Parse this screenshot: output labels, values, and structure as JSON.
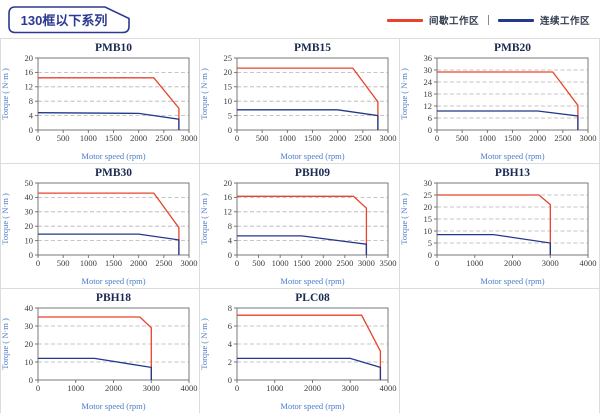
{
  "header": {
    "title": "130框以下系列",
    "legend": [
      {
        "key": "intermittent",
        "label": "间歇工作区",
        "color": "#e8432c"
      },
      {
        "key": "continuous",
        "label": "连续工作区",
        "color": "#21388b"
      }
    ]
  },
  "chart_data": [
    {
      "type": "line",
      "title": "PMB10",
      "xlabel": "Motor speed (rpm)",
      "ylabel": "Torque ( N·m )",
      "xlim": [
        0,
        3000
      ],
      "xtick_step": 500,
      "ylim": [
        0,
        20
      ],
      "ytick_step": 4,
      "grid": true,
      "legend_position": "none",
      "series": [
        {
          "name": "间歇工作区",
          "key": "intermittent",
          "color": "#e8432c",
          "points": [
            [
              0,
              14.5
            ],
            [
              2300,
              14.5
            ],
            [
              2800,
              6
            ],
            [
              2800,
              0
            ]
          ]
        },
        {
          "name": "连续工作区",
          "key": "continuous",
          "color": "#21388b",
          "points": [
            [
              0,
              4.8
            ],
            [
              2000,
              4.6
            ],
            [
              2800,
              3
            ],
            [
              2800,
              0
            ]
          ]
        }
      ]
    },
    {
      "type": "line",
      "title": "PMB15",
      "xlabel": "Motor speed (rpm)",
      "ylabel": "Torque ( N·m )",
      "xlim": [
        0,
        3000
      ],
      "xtick_step": 500,
      "ylim": [
        0,
        25
      ],
      "ytick_step": 5,
      "grid": true,
      "legend_position": "none",
      "series": [
        {
          "name": "间歇工作区",
          "key": "intermittent",
          "color": "#e8432c",
          "points": [
            [
              0,
              21.5
            ],
            [
              2300,
              21.5
            ],
            [
              2800,
              9.8
            ],
            [
              2800,
              0
            ]
          ]
        },
        {
          "name": "连续工作区",
          "key": "continuous",
          "color": "#21388b",
          "points": [
            [
              0,
              7
            ],
            [
              2000,
              7
            ],
            [
              2800,
              5
            ],
            [
              2800,
              0
            ]
          ]
        }
      ]
    },
    {
      "type": "line",
      "title": "PMB20",
      "xlabel": "Motor speed (rpm)",
      "ylabel": "Torque ( N·m )",
      "xlim": [
        0,
        3000
      ],
      "xtick_step": 500,
      "ylim": [
        0,
        36
      ],
      "ytick_step": 6,
      "grid": true,
      "legend_position": "none",
      "series": [
        {
          "name": "间歇工作区",
          "key": "intermittent",
          "color": "#e8432c",
          "points": [
            [
              0,
              29
            ],
            [
              2300,
              29
            ],
            [
              2800,
              12.3
            ],
            [
              2800,
              0
            ]
          ]
        },
        {
          "name": "连续工作区",
          "key": "continuous",
          "color": "#21388b",
          "points": [
            [
              0,
              9.5
            ],
            [
              2000,
              9.5
            ],
            [
              2800,
              7
            ],
            [
              2800,
              0
            ]
          ]
        }
      ]
    },
    {
      "type": "line",
      "title": "PMB30",
      "xlabel": "Motor speed (rpm)",
      "ylabel": "Torque ( N·m )",
      "xlim": [
        0,
        3000
      ],
      "xtick_step": 500,
      "ylim": [
        0,
        50
      ],
      "ytick_step": 10,
      "grid": true,
      "legend_position": "none",
      "series": [
        {
          "name": "间歇工作区",
          "key": "intermittent",
          "color": "#e8432c",
          "points": [
            [
              0,
              43
            ],
            [
              2300,
              43
            ],
            [
              2800,
              19
            ],
            [
              2800,
              0
            ]
          ]
        },
        {
          "name": "连续工作区",
          "key": "continuous",
          "color": "#21388b",
          "points": [
            [
              0,
              14.5
            ],
            [
              2000,
              14.5
            ],
            [
              2800,
              10.5
            ],
            [
              2800,
              0
            ]
          ]
        }
      ]
    },
    {
      "type": "line",
      "title": "PBH09",
      "xlabel": "Motor speed (rpm)",
      "ylabel": "Torque ( N·m )",
      "xlim": [
        0,
        3500
      ],
      "xtick_step": 500,
      "ylim": [
        0,
        20
      ],
      "ytick_step": 4,
      "grid": true,
      "legend_position": "none",
      "series": [
        {
          "name": "间歇工作区",
          "key": "intermittent",
          "color": "#e8432c",
          "points": [
            [
              0,
              16.3
            ],
            [
              2700,
              16.3
            ],
            [
              3000,
              13
            ],
            [
              3000,
              0
            ]
          ]
        },
        {
          "name": "连续工作区",
          "key": "continuous",
          "color": "#21388b",
          "points": [
            [
              0,
              5.3
            ],
            [
              1500,
              5.3
            ],
            [
              3000,
              3
            ],
            [
              3000,
              0
            ]
          ]
        }
      ]
    },
    {
      "type": "line",
      "title": "PBH13",
      "xlabel": "Motor speed (rpm)",
      "ylabel": "Torque ( N·m )",
      "xlim": [
        0,
        4000
      ],
      "xtick_step": 1000,
      "ylim": [
        0,
        30
      ],
      "ytick_step": 5,
      "grid": true,
      "legend_position": "none",
      "series": [
        {
          "name": "间歇工作区",
          "key": "intermittent",
          "color": "#e8432c",
          "points": [
            [
              0,
              25
            ],
            [
              2700,
              25
            ],
            [
              3000,
              21
            ],
            [
              3000,
              0
            ]
          ]
        },
        {
          "name": "连续工作区",
          "key": "continuous",
          "color": "#21388b",
          "points": [
            [
              0,
              8.5
            ],
            [
              1500,
              8.5
            ],
            [
              3000,
              5
            ],
            [
              3000,
              0
            ]
          ]
        }
      ]
    },
    {
      "type": "line",
      "title": "PBH18",
      "xlabel": "Motor speed (rpm)",
      "ylabel": "Torque ( N·m )",
      "xlim": [
        0,
        4000
      ],
      "xtick_step": 1000,
      "ylim": [
        0,
        40
      ],
      "ytick_step": 10,
      "grid": true,
      "legend_position": "none",
      "series": [
        {
          "name": "间歇工作区",
          "key": "intermittent",
          "color": "#e8432c",
          "points": [
            [
              0,
              35
            ],
            [
              2700,
              35
            ],
            [
              3000,
              29
            ],
            [
              3000,
              0
            ]
          ]
        },
        {
          "name": "连续工作区",
          "key": "continuous",
          "color": "#21388b",
          "points": [
            [
              0,
              12
            ],
            [
              1500,
              12
            ],
            [
              3000,
              7
            ],
            [
              3000,
              0
            ]
          ]
        }
      ]
    },
    {
      "type": "line",
      "title": "PLC08",
      "xlabel": "Motor speed (rpm)",
      "ylabel": "Torque ( N·m )",
      "xlim": [
        0,
        4000
      ],
      "xtick_step": 1000,
      "ylim": [
        0,
        8
      ],
      "ytick_step": 2,
      "grid": true,
      "legend_position": "none",
      "series": [
        {
          "name": "间歇工作区",
          "key": "intermittent",
          "color": "#e8432c",
          "points": [
            [
              0,
              7.2
            ],
            [
              3300,
              7.2
            ],
            [
              3800,
              3.2
            ],
            [
              3800,
              0
            ]
          ]
        },
        {
          "name": "连续工作区",
          "key": "continuous",
          "color": "#21388b",
          "points": [
            [
              0,
              2.4
            ],
            [
              3000,
              2.4
            ],
            [
              3800,
              1.4
            ],
            [
              3800,
              0
            ]
          ]
        }
      ]
    }
  ]
}
